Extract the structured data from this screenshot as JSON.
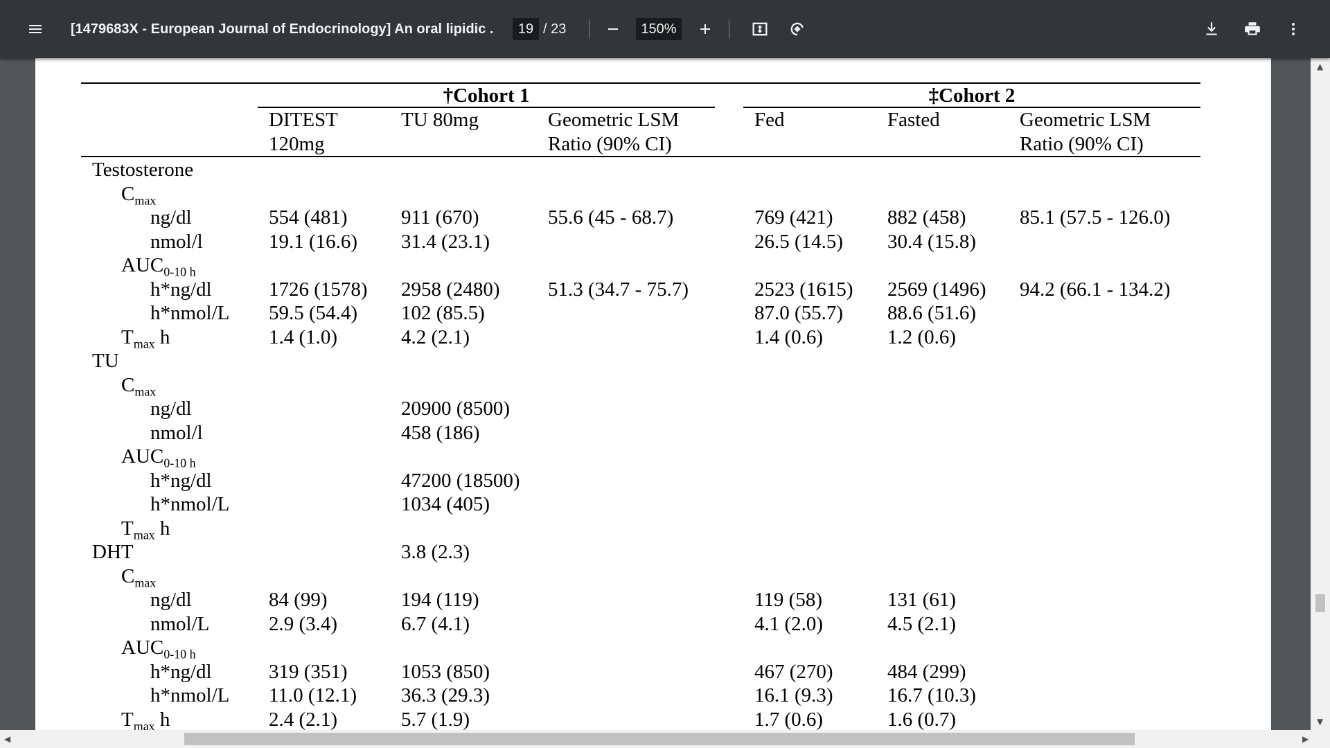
{
  "toolbar": {
    "title": "[1479683X - European Journal of Endocrinology] An oral lipidic ...",
    "current_page": "19",
    "total_pages": "/ 23",
    "zoom": "150%"
  },
  "table": {
    "cohort1_title": "†Cohort 1",
    "cohort2_title": "‡Cohort 2",
    "headers": {
      "ditest_1": "DITEST",
      "ditest_2": "120mg",
      "tu80": "TU 80mg",
      "lsm1_1": "Geometric LSM",
      "lsm1_2": "Ratio (90% CI)",
      "fed": "Fed",
      "fasted": "Fasted",
      "lsm2_1": "Geometric LSM",
      "lsm2_2": "Ratio (90% CI)"
    },
    "rows": [
      {
        "label": "Testosterone",
        "indent": 0,
        "cells": [
          "",
          "",
          "",
          "",
          "",
          ""
        ]
      },
      {
        "label": "C",
        "sub": "max",
        "indent": 1,
        "cells": [
          "",
          "",
          "",
          "",
          "",
          ""
        ]
      },
      {
        "label": "ng/dl",
        "indent": 2,
        "cells": [
          "554 (481)",
          "911 (670)",
          "55.6 (45 - 68.7)",
          "769 (421)",
          "882 (458)",
          "85.1 (57.5 - 126.0)"
        ]
      },
      {
        "label": "nmol/l",
        "indent": 2,
        "cells": [
          "19.1 (16.6)",
          "31.4 (23.1)",
          "",
          "26.5 (14.5)",
          "30.4 (15.8)",
          ""
        ]
      },
      {
        "label": "AUC",
        "sub": "0-10 h",
        "indent": 1,
        "cells": [
          "",
          "",
          "",
          "",
          "",
          ""
        ]
      },
      {
        "label": "h*ng/dl",
        "indent": 2,
        "cells": [
          "1726 (1578)",
          "2958 (2480)",
          "51.3 (34.7 - 75.7)",
          "2523 (1615)",
          "2569 (1496)",
          "94.2 (66.1 - 134.2)"
        ]
      },
      {
        "label": "h*nmol/L",
        "indent": 2,
        "cells": [
          "59.5 (54.4)",
          "102 (85.5)",
          "",
          "87.0 (55.7)",
          "88.6 (51.6)",
          ""
        ]
      },
      {
        "label": "T",
        "sub": "max",
        "suffix": " h",
        "indent": 1,
        "cells": [
          "1.4 (1.0)",
          "4.2 (2.1)",
          "",
          "1.4 (0.6)",
          "1.2 (0.6)",
          ""
        ]
      },
      {
        "label": "TU",
        "indent": 0,
        "cells": [
          "",
          "",
          "",
          "",
          "",
          ""
        ]
      },
      {
        "label": "C",
        "sub": "max",
        "indent": 1,
        "cells": [
          "",
          "",
          "",
          "",
          "",
          ""
        ]
      },
      {
        "label": "ng/dl",
        "indent": 2,
        "cells": [
          "",
          "20900 (8500)",
          "",
          "",
          "",
          ""
        ]
      },
      {
        "label": "nmol/l",
        "indent": 2,
        "cells": [
          "",
          "458 (186)",
          "",
          "",
          "",
          ""
        ]
      },
      {
        "label": "AUC",
        "sub": "0-10 h",
        "indent": 1,
        "cells": [
          "",
          "",
          "",
          "",
          "",
          ""
        ]
      },
      {
        "label": "h*ng/dl",
        "indent": 2,
        "cells": [
          "",
          "47200 (18500)",
          "",
          "",
          "",
          ""
        ]
      },
      {
        "label": "h*nmol/L",
        "indent": 2,
        "cells": [
          "",
          "1034 (405)",
          "",
          "",
          "",
          ""
        ]
      },
      {
        "label": "T",
        "sub": "max",
        "suffix": " h",
        "indent": 1,
        "cells": [
          "",
          "",
          "",
          "",
          "",
          ""
        ]
      },
      {
        "label": "DHT",
        "indent": 0,
        "cells": [
          "",
          "3.8 (2.3)",
          "",
          "",
          "",
          ""
        ]
      },
      {
        "label": "C",
        "sub": "max",
        "indent": 1,
        "cells": [
          "",
          "",
          "",
          "",
          "",
          ""
        ]
      },
      {
        "label": "ng/dl",
        "indent": 2,
        "cells": [
          "84 (99)",
          "194 (119)",
          "",
          "119 (58)",
          "131 (61)",
          ""
        ]
      },
      {
        "label": "nmol/L",
        "indent": 2,
        "cells": [
          "2.9 (3.4)",
          "6.7 (4.1)",
          "",
          "4.1 (2.0)",
          "4.5 (2.1)",
          ""
        ]
      },
      {
        "label": "AUC",
        "sub": "0-10 h",
        "indent": 1,
        "cells": [
          "",
          "",
          "",
          "",
          "",
          ""
        ]
      },
      {
        "label": "h*ng/dl",
        "indent": 2,
        "cells": [
          "319 (351)",
          "1053 (850)",
          "",
          "467 (270)",
          "484 (299)",
          ""
        ]
      },
      {
        "label": "h*nmol/L",
        "indent": 2,
        "cells": [
          "11.0 (12.1)",
          "36.3 (29.3)",
          "",
          "16.1 (9.3)",
          "16.7 (10.3)",
          ""
        ]
      },
      {
        "label": "T",
        "sub": "max",
        "suffix": " h",
        "indent": 1,
        "cells": [
          "2.4 (2.1)",
          "5.7 (1.9)",
          "",
          "1.7 (0.6)",
          "1.6 (0.7)",
          ""
        ]
      }
    ]
  }
}
